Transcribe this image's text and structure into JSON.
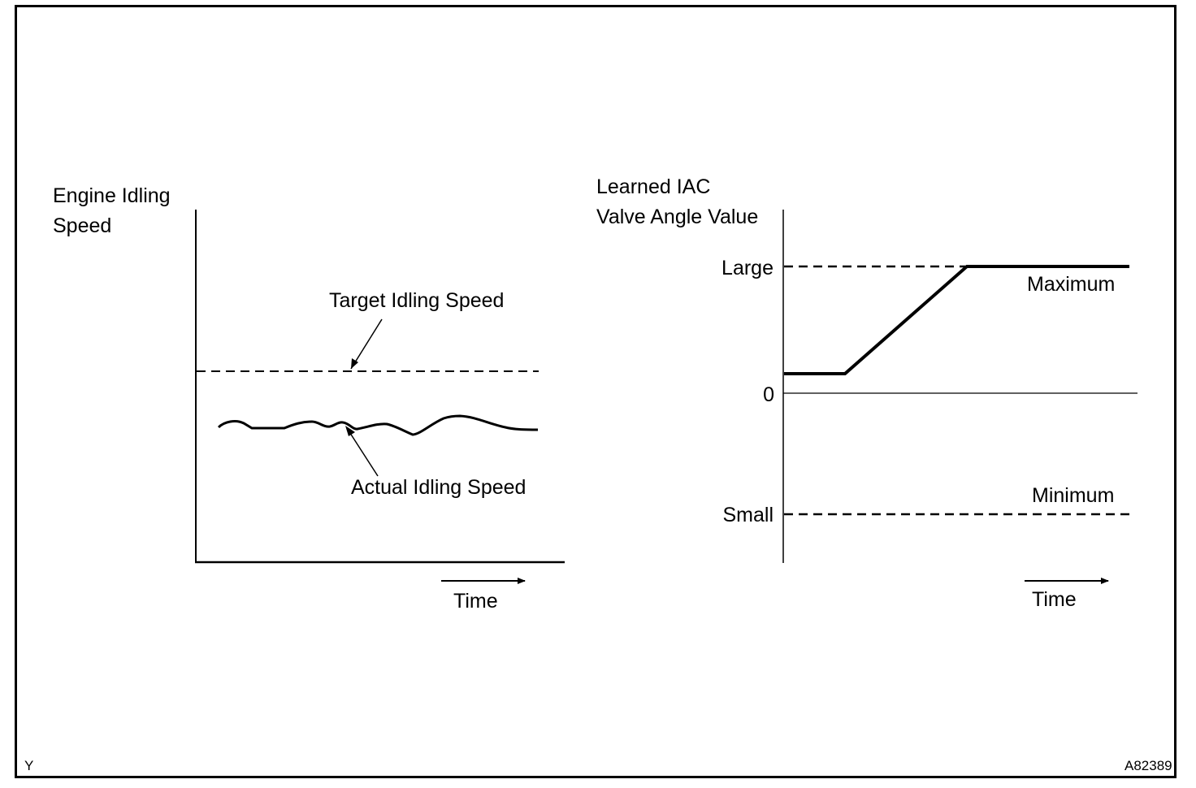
{
  "left_chart": {
    "ylabel_line1": "Engine Idling",
    "ylabel_line2": "Speed",
    "target_label": "Target Idling Speed",
    "actual_label": "Actual Idling Speed",
    "xlabel": "Time"
  },
  "right_chart": {
    "ylabel_line1": "Learned IAC",
    "ylabel_line2": "Valve Angle Value",
    "tick_large": "Large",
    "tick_zero": "0",
    "tick_small": "Small",
    "max_label": "Maximum",
    "min_label": "Minimum",
    "xlabel": "Time"
  },
  "footer": {
    "left_code": "Y",
    "figure_id": "A82389"
  },
  "colors": {
    "line": "#000000",
    "background": "#ffffff"
  }
}
